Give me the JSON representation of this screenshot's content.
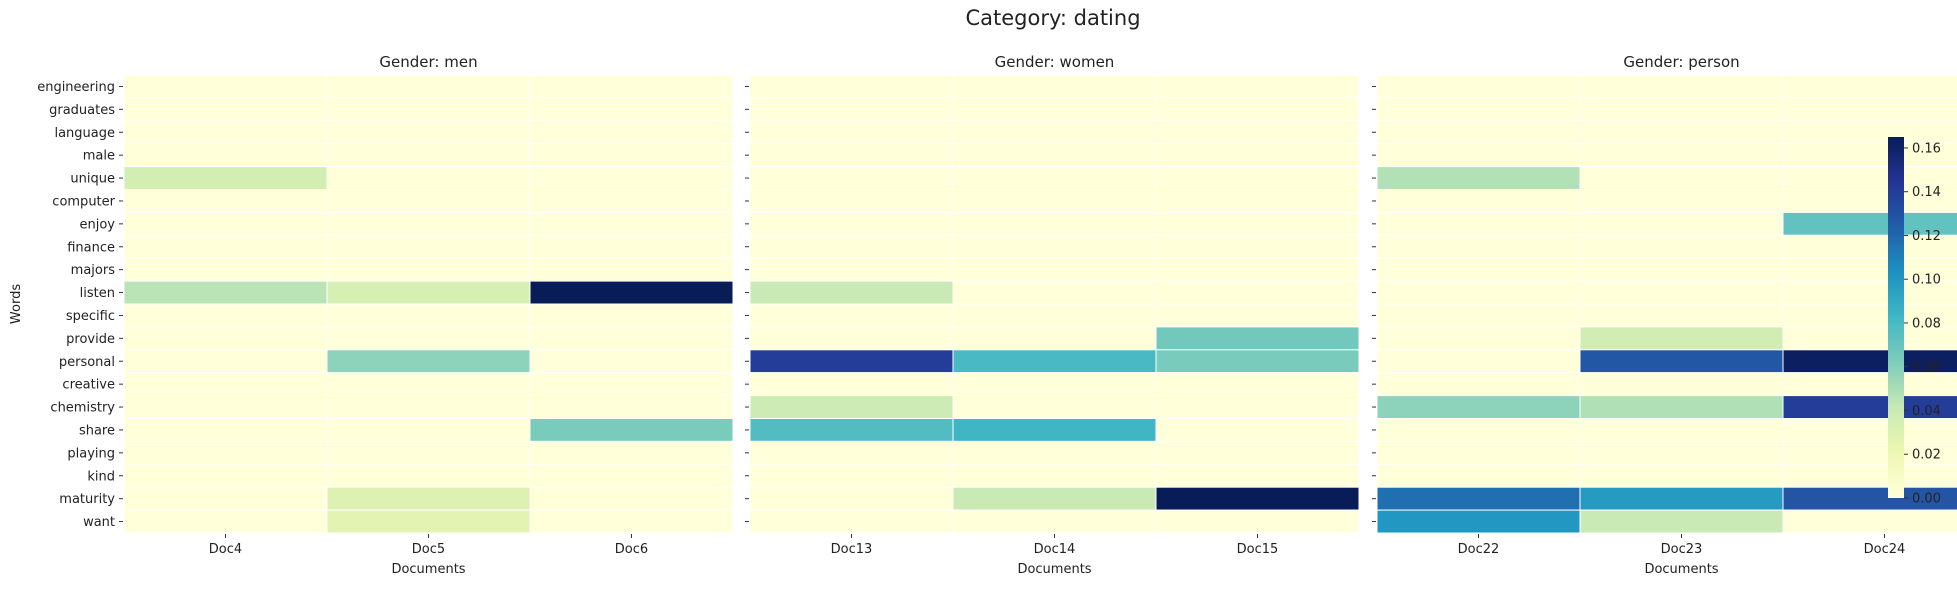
{
  "chart_data": {
    "type": "heatmap",
    "title": "Category: dating",
    "ylabel": "Words",
    "xlabel": "Documents",
    "colormap": "YlGnBu",
    "vmin": 0,
    "vmax": 0.165,
    "colorbar_ticks": [
      "0.00",
      "0.02",
      "0.04",
      "0.06",
      "0.08",
      "0.10",
      "0.12",
      "0.14",
      "0.16"
    ],
    "words": [
      "engineering",
      "graduates",
      "language",
      "male",
      "unique",
      "computer",
      "enjoy",
      "finance",
      "majors",
      "listen",
      "specific",
      "provide",
      "personal",
      "creative",
      "chemistry",
      "share",
      "playing",
      "kind",
      "maturity",
      "want"
    ],
    "panels": [
      {
        "title": "Gender: men",
        "documents": [
          "Doc4",
          "Doc5",
          "Doc6"
        ],
        "values": [
          [
            0,
            0,
            0
          ],
          [
            0,
            0,
            0
          ],
          [
            0,
            0,
            0
          ],
          [
            0,
            0,
            0
          ],
          [
            0.035,
            0,
            0
          ],
          [
            0,
            0,
            0
          ],
          [
            0,
            0,
            0
          ],
          [
            0,
            0,
            0
          ],
          [
            0,
            0,
            0
          ],
          [
            0.045,
            0.033,
            0.165
          ],
          [
            0,
            0,
            0
          ],
          [
            0,
            0,
            0
          ],
          [
            0,
            0.058,
            0
          ],
          [
            0,
            0,
            0
          ],
          [
            0,
            0,
            0
          ],
          [
            0,
            0,
            0.064
          ],
          [
            0,
            0,
            0
          ],
          [
            0,
            0,
            0
          ],
          [
            0,
            0.03,
            0
          ],
          [
            0,
            0.026,
            0
          ]
        ]
      },
      {
        "title": "Gender: women",
        "documents": [
          "Doc13",
          "Doc14",
          "Doc15"
        ],
        "values": [
          [
            0,
            0,
            0
          ],
          [
            0,
            0,
            0
          ],
          [
            0,
            0,
            0
          ],
          [
            0,
            0,
            0
          ],
          [
            0,
            0,
            0
          ],
          [
            0,
            0,
            0
          ],
          [
            0,
            0,
            0
          ],
          [
            0,
            0,
            0
          ],
          [
            0,
            0,
            0
          ],
          [
            0.04,
            0,
            0
          ],
          [
            0,
            0,
            0
          ],
          [
            0,
            0,
            0.066
          ],
          [
            0.14,
            0.08,
            0.064
          ],
          [
            0,
            0,
            0
          ],
          [
            0.038,
            0,
            0
          ],
          [
            0.077,
            0.083,
            0
          ],
          [
            0,
            0,
            0
          ],
          [
            0,
            0,
            0
          ],
          [
            0,
            0.04,
            0.165
          ],
          [
            0,
            0,
            0
          ]
        ]
      },
      {
        "title": "Gender: person",
        "documents": [
          "Doc22",
          "Doc23",
          "Doc24"
        ],
        "values": [
          [
            0,
            0,
            0
          ],
          [
            0,
            0,
            0
          ],
          [
            0,
            0,
            0
          ],
          [
            0,
            0,
            0
          ],
          [
            0.047,
            0,
            0
          ],
          [
            0,
            0,
            0
          ],
          [
            0,
            0,
            0.072
          ],
          [
            0,
            0,
            0
          ],
          [
            0,
            0,
            0
          ],
          [
            0,
            0,
            0
          ],
          [
            0,
            0,
            0
          ],
          [
            0,
            0.036,
            0
          ],
          [
            0,
            0.127,
            0.162
          ],
          [
            0,
            0,
            0
          ],
          [
            0.058,
            0.048,
            0.14
          ],
          [
            0,
            0,
            0
          ],
          [
            0,
            0,
            0
          ],
          [
            0,
            0,
            0
          ],
          [
            0.117,
            0.098,
            0.128
          ],
          [
            0.1,
            0.04,
            0
          ]
        ]
      }
    ]
  }
}
